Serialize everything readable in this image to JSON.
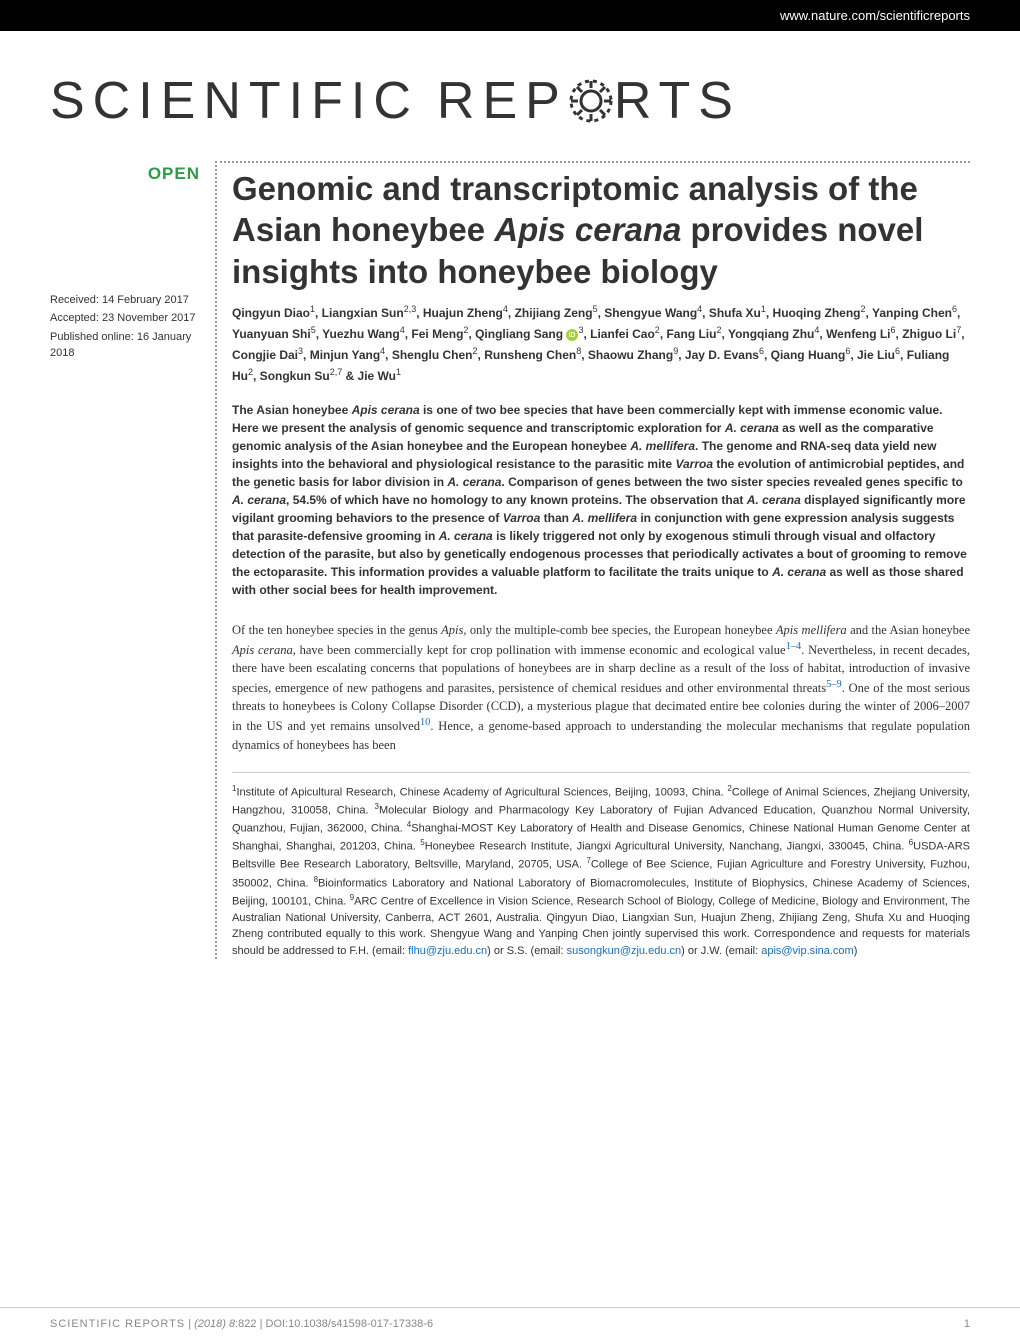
{
  "header": {
    "url": "www.nature.com/scientificreports"
  },
  "journal": {
    "name_part1": "SCIENTIFIC",
    "name_part2": "REP",
    "name_part3": "RTS"
  },
  "badge": {
    "open": "OPEN"
  },
  "dates": {
    "received": "Received: 14 February 2017",
    "accepted": "Accepted: 23 November 2017",
    "published": "Published online: 16 January 2018"
  },
  "title": {
    "line": "Genomic and transcriptomic analysis of the Asian honeybee ",
    "italic1": "Apis cerana",
    "line2": " provides novel insights into honeybee biology"
  },
  "authors_html": "Qingyun Diao<sup>1</sup>, Liangxian Sun<sup>2,3</sup>, Huajun Zheng<sup>4</sup>, Zhijiang Zeng<sup>5</sup>, Shengyue Wang<sup>4</sup>, Shufa Xu<sup>1</sup>, Huoqing Zheng<sup>2</sup>, Yanping Chen<sup>6</sup>, Yuanyuan Shi<sup>5</sup>, Yuezhu Wang<sup>4</sup>, Fei Meng<sup>2</sup>, Qingliang Sang <span class=\"orcid-icon\" data-name=\"orcid-icon\" data-interactable=\"false\"></span><sup>3</sup>, Lianfei Cao<sup>2</sup>, Fang Liu<sup>2</sup>, Yongqiang Zhu<sup>4</sup>, Wenfeng Li<sup>6</sup>, Zhiguo Li<sup>7</sup>, Congjie Dai<sup>3</sup>, Minjun Yang<sup>4</sup>, Shenglu Chen<sup>2</sup>, Runsheng Chen<sup>8</sup>, Shaowu Zhang<sup>9</sup>, Jay D. Evans<sup>6</sup>, Qiang Huang<sup>6</sup>, Jie Liu<sup>6</sup>, Fuliang Hu<sup>2</sup>, Songkun Su<sup>2,7</sup> & Jie Wu<sup>1</sup>",
  "abstract_html": "The Asian honeybee <span class=\"italic\">Apis cerana</span> is one of two bee species that have been commercially kept with immense economic value. Here we present the analysis of genomic sequence and transcriptomic exploration for <span class=\"italic\">A. cerana</span> as well as the comparative genomic analysis of the Asian honeybee and the European honeybee <span class=\"italic\">A. mellifera</span>. The genome and RNA-seq data yield new insights into the behavioral and physiological resistance to the parasitic mite <span class=\"italic\">Varroa</span> the evolution of antimicrobial peptides, and the genetic basis for labor division in <span class=\"italic\">A. cerana</span>. Comparison of genes between the two sister species revealed genes specific to <span class=\"italic\">A. cerana</span>, 54.5% of which have no homology to any known proteins. The observation that <span class=\"italic\">A. cerana</span> displayed significantly more vigilant grooming behaviors to the presence of <span class=\"italic\">Varroa</span> than <span class=\"italic\">A. mellifera</span> in conjunction with gene expression analysis suggests that parasite-defensive grooming in <span class=\"italic\">A. cerana</span> is likely triggered not only by exogenous stimuli through visual and olfactory detection of the parasite, but also by genetically endogenous processes that periodically activates a bout of grooming to remove the ectoparasite. This information provides a valuable platform to facilitate the traits unique to <span class=\"italic\">A. cerana</span> as well as those shared with other social bees for health improvement.",
  "body_html": "Of the ten honeybee species in the genus <span class=\"italic\">Apis</span>, only the multiple-comb bee species, the European honeybee <span class=\"italic\">Apis mellifera</span> and the Asian honeybee <span class=\"italic\">Apis cerana</span>, have been commercially kept for crop pollination with immense economic and ecological value<sup class=\"ref-link\">1–4</sup>. Nevertheless, in recent decades, there have been escalating concerns that populations of honeybees are in sharp decline as a result of the loss of habitat, introduction of invasive species, emergence of new pathogens and parasites, persistence of chemical residues and other environmental threats<sup class=\"ref-link\">5–9</sup>. One of the most serious threats to honeybees is Colony Collapse Disorder (CCD), a mysterious plague that decimated entire bee colonies during the winter of 2006–2007 in the US and yet remains unsolved<sup class=\"ref-link\">10</sup>. Hence, a genome-based approach to understanding the molecular mechanisms that regulate population dynamics of honeybees has been",
  "affiliations_html": "<sup>1</sup>Institute of Apicultural Research, Chinese Academy of Agricultural Sciences, Beijing, 10093, China. <sup>2</sup>College of Animal Sciences, Zhejiang University, Hangzhou, 310058, China. <sup>3</sup>Molecular Biology and Pharmacology Key Laboratory of Fujian Advanced Education, Quanzhou Normal University, Quanzhou, Fujian, 362000, China. <sup>4</sup>Shanghai-MOST Key Laboratory of Health and Disease Genomics, Chinese National Human Genome Center at Shanghai, Shanghai, 201203, China. <sup>5</sup>Honeybee Research Institute, Jiangxi Agricultural University, Nanchang, Jiangxi, 330045, China. <sup>6</sup>USDA-ARS Beltsville Bee Research Laboratory, Beltsville, Maryland, 20705, USA. <sup>7</sup>College of Bee Science, Fujian Agriculture and Forestry University, Fuzhou, 350002, China. <sup>8</sup>Bioinformatics Laboratory and National Laboratory of Biomacromolecules, Institute of Biophysics, Chinese Academy of Sciences, Beijing, 100101, China. <sup>9</sup>ARC Centre of Excellence in Vision Science, Research School of Biology, College of Medicine, Biology and Environment, The Australian National University, Canberra, ACT 2601, Australia. Qingyun Diao, Liangxian Sun, Huajun Zheng, Zhijiang Zeng, Shufa Xu and Huoqing Zheng contributed equally to this work. Shengyue Wang and Yanping Chen jointly supervised this work. Correspondence and requests for materials should be addressed to F.H. (email: <span class=\"email-link\">flhu@zju.edu.cn</span>) or S.S. (email: <span class=\"email-link\">susongkun@zju.edu.cn</span>) or J.W. (email: <span class=\"email-link\">apis@vip.sina.com</span>)",
  "footer": {
    "left": "SCIENTIFIC REPORTS | (2018) 8:822 | DOI:10.1038/s41598-017-17338-6",
    "page": "1"
  },
  "colors": {
    "header_bg": "#000000",
    "open_green": "#2d9b47",
    "link_blue": "#1a6db5",
    "orcid_green": "#a6ce39",
    "text": "#333333",
    "footer_grey": "#888888"
  }
}
